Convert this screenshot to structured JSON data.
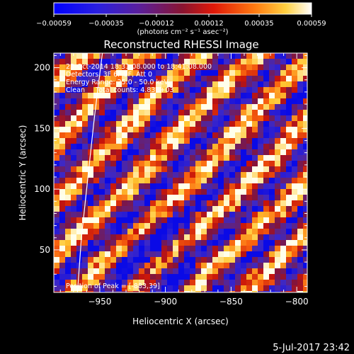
{
  "chart_data": {
    "type": "heatmap",
    "title": "Reconstructed RHESSI Image",
    "xlabel": "Heliocentric X (arcsec)",
    "ylabel": "Heliocentric Y (arcsec)",
    "xlim": [
      -985,
      -792
    ],
    "ylim": [
      15,
      212
    ],
    "x_ticks": [
      -950,
      -900,
      -850,
      -800
    ],
    "x_tick_labels": [
      "−950",
      "−900",
      "−850",
      "−800"
    ],
    "y_ticks": [
      50,
      100,
      150,
      200
    ],
    "y_tick_labels": [
      "50",
      "100",
      "150",
      "200"
    ],
    "colorbar": {
      "label": "(photons cm⁻² s⁻¹ asec⁻²)",
      "range": [
        -0.00059,
        0.00059
      ],
      "ticks": [
        -0.00059,
        -0.00035,
        -0.00012,
        0.00012,
        0.00035,
        0.00059
      ],
      "tick_labels": [
        "−0.00059",
        "−0.00035",
        "−0.00012",
        "0.00012",
        "0.00035",
        "0.00059"
      ],
      "colormap": "blue-purple-red-orange-yellow-white"
    },
    "annotations": [
      "23-Oct-2014 18:31:08.000 to 18:41:08.000",
      "Detectors: 3F 6F 9F, Att 0",
      "Energy Range: 25.0 - 50.0 keV",
      "Clean     Total counts: 4.83E+03",
      "Position of Peak = [-883,39]"
    ],
    "limb_curve": [
      [
        -967,
        15
      ],
      [
        -964,
        60
      ],
      [
        -959,
        110
      ],
      [
        -954,
        160
      ],
      [
        -948,
        212
      ]
    ],
    "grid": false,
    "pattern": "diagonal stripes (wavelength ~16 arcsec, direction lower-left to upper-right)",
    "peak": [
      -883,
      39
    ]
  },
  "footer": {
    "date": "5-Jul-2017 23:42"
  }
}
